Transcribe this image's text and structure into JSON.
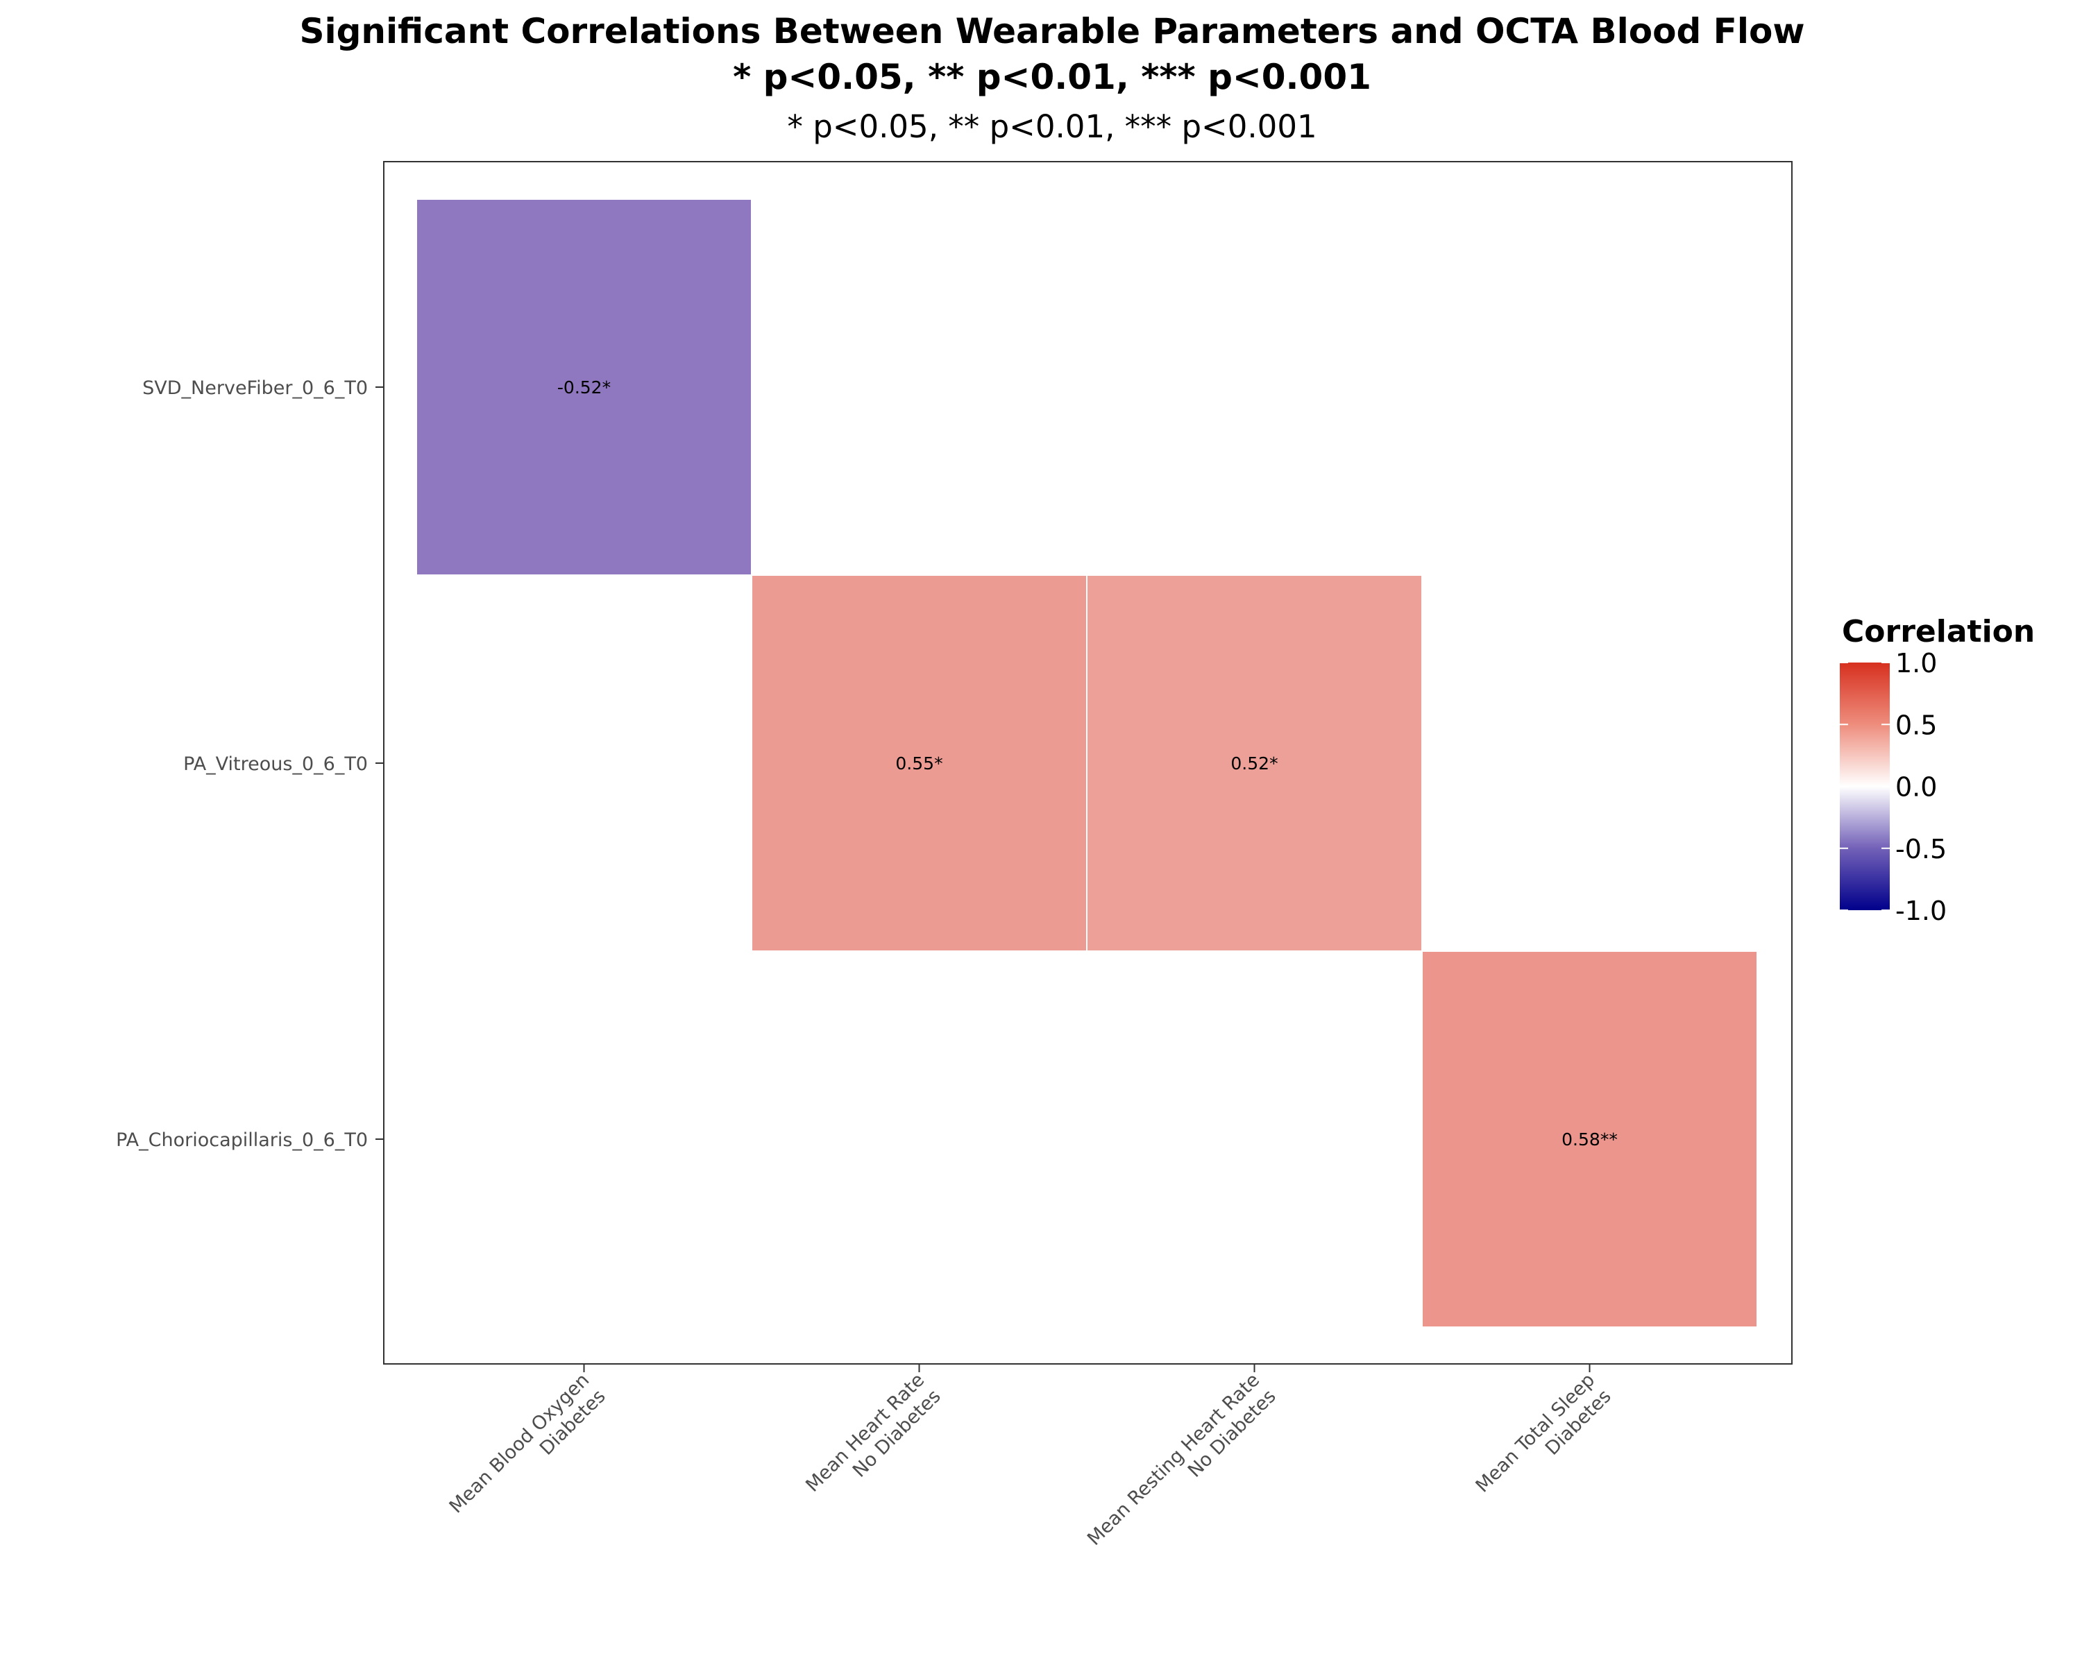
{
  "chart_data": {
    "type": "heatmap",
    "title": "Significant Correlations Between Wearable Parameters and OCTA Blood Flow",
    "title_line2": "* p<0.05, ** p<0.01, *** p<0.001",
    "subtitle": "* p<0.05, ** p<0.01, *** p<0.001",
    "x_categories": [
      [
        "Mean Blood Oxygen",
        "Diabetes"
      ],
      [
        "Mean Heart Rate",
        "No Diabetes"
      ],
      [
        "Mean Resting Heart Rate",
        "No Diabetes"
      ],
      [
        "Mean Total Sleep",
        "Diabetes"
      ]
    ],
    "y_categories": [
      "SVD_NerveFiber_0_6_T0",
      "PA_Vitreous_0_6_T0",
      "PA_Choriocapillaris_0_6_T0"
    ],
    "cells": [
      {
        "x": 0,
        "y": 0,
        "value": -0.52,
        "label": "-0.52*"
      },
      {
        "x": 1,
        "y": 1,
        "value": 0.55,
        "label": "0.55*"
      },
      {
        "x": 2,
        "y": 1,
        "value": 0.52,
        "label": "0.52*"
      },
      {
        "x": 3,
        "y": 2,
        "value": 0.58,
        "label": "0.58**"
      }
    ],
    "legend": {
      "title": "Correlation",
      "placement": "right",
      "range": [
        -1.0,
        1.0
      ],
      "ticks": [
        "1.0",
        "0.5",
        "0.0",
        "-0.5",
        "-1.0"
      ],
      "tick_values": [
        1.0,
        0.5,
        0.0,
        -0.5,
        -1.0
      ],
      "colors": {
        "low": "#00008B",
        "mid": "#FFFFFF",
        "high": "#D7301F"
      }
    },
    "grid": false
  }
}
